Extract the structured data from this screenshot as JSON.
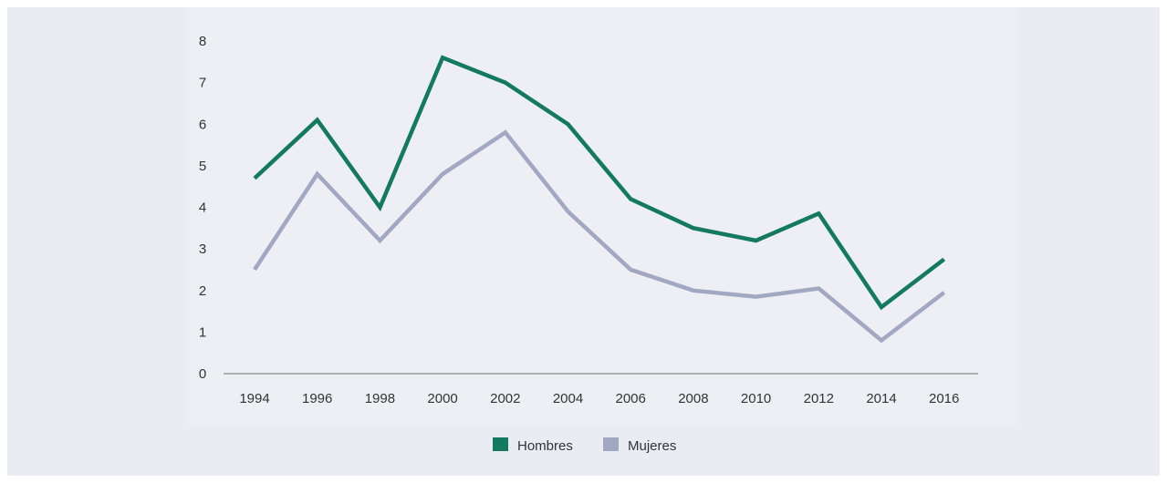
{
  "chart_data": {
    "type": "line",
    "title": "",
    "xlabel": "",
    "ylabel": "",
    "x": [
      "1994",
      "1996",
      "1998",
      "2000",
      "2002",
      "2004",
      "2006",
      "2008",
      "2010",
      "2012",
      "2014",
      "2016"
    ],
    "y_ticks": [
      "0",
      "1",
      "2",
      "3",
      "4",
      "5",
      "6",
      "7",
      "8"
    ],
    "ylim": [
      0,
      8
    ],
    "grid": false,
    "legend_position": "bottom-center",
    "series": [
      {
        "name": "Hombres",
        "color": "#137a61",
        "values": [
          4.7,
          6.1,
          4.0,
          7.6,
          7.0,
          6.0,
          4.2,
          3.5,
          3.2,
          3.85,
          1.6,
          2.75
        ]
      },
      {
        "name": "Mujeres",
        "color": "#a2a7c2",
        "values": [
          2.5,
          4.8,
          3.2,
          4.8,
          5.8,
          3.9,
          2.5,
          2.0,
          1.85,
          2.05,
          0.8,
          1.95
        ]
      }
    ]
  }
}
